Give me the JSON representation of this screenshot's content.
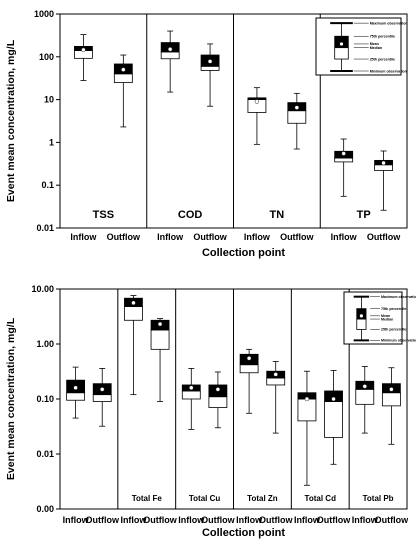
{
  "chart_data": [
    {
      "type": "boxplot",
      "ylabel": "Event mean concentration, mg/L",
      "xlabel": "Collection point",
      "yscale": "log",
      "ylim": [
        0.01,
        1000
      ],
      "ytick_labels": [
        "0.01",
        "0.1",
        "1",
        "10",
        "100",
        "1000"
      ],
      "yticks": [
        0.01,
        0.1,
        1,
        10,
        100,
        1000
      ],
      "categories": [
        "Inflow",
        "Outflow"
      ],
      "groups": [
        {
          "name": "TSS",
          "boxes": [
            {
              "category": "Inflow",
              "min": 28,
              "q1": 92,
              "median": 140,
              "mean": 145,
              "q3": 175,
              "max": 330
            },
            {
              "category": "Outflow",
              "min": 2.3,
              "q1": 25,
              "median": 40,
              "mean": 50,
              "q3": 68,
              "max": 110
            }
          ]
        },
        {
          "name": "COD",
          "boxes": [
            {
              "category": "Inflow",
              "min": 15,
              "q1": 90,
              "median": 130,
              "mean": 150,
              "q3": 215,
              "max": 400
            },
            {
              "category": "Outflow",
              "min": 7,
              "q1": 48,
              "median": 60,
              "mean": 78,
              "q3": 110,
              "max": 200
            }
          ]
        },
        {
          "name": "TN",
          "boxes": [
            {
              "category": "Inflow",
              "min": 0.9,
              "q1": 5,
              "median": 10,
              "mean": 9,
              "q3": 11,
              "max": 19
            },
            {
              "category": "Outflow",
              "min": 0.7,
              "q1": 2.8,
              "median": 5.5,
              "mean": 6.5,
              "q3": 8.5,
              "max": 14
            }
          ]
        },
        {
          "name": "TP",
          "boxes": [
            {
              "category": "Inflow",
              "min": 0.055,
              "q1": 0.35,
              "median": 0.43,
              "mean": 0.55,
              "q3": 0.62,
              "max": 1.2
            },
            {
              "category": "Outflow",
              "min": 0.026,
              "q1": 0.22,
              "median": 0.3,
              "mean": 0.33,
              "q3": 0.38,
              "max": 0.63
            }
          ]
        }
      ],
      "legend": {
        "position": "top-right",
        "entries": [
          "Maximum observation",
          "75th percentile",
          "Mean",
          "Median",
          "25th percentile",
          "Minimum observation"
        ]
      }
    },
    {
      "type": "boxplot",
      "ylabel": "Event mean concentration, mg/L",
      "xlabel": "Collection point",
      "yscale": "log",
      "ylim": [
        0.001,
        10
      ],
      "ytick_labels": [
        "0.00",
        "0.01",
        "0.10",
        "1.00",
        "10.00"
      ],
      "yticks": [
        0.001,
        0.01,
        0.1,
        1,
        10
      ],
      "categories": [
        "Inflow",
        "Outflow"
      ],
      "groups": [
        {
          "name": "",
          "boxes": [
            {
              "category": "Inflow",
              "min": 0.045,
              "q1": 0.095,
              "median": 0.13,
              "mean": 0.16,
              "q3": 0.22,
              "max": 0.38
            },
            {
              "category": "Outflow",
              "min": 0.032,
              "q1": 0.09,
              "median": 0.12,
              "mean": 0.15,
              "q3": 0.19,
              "max": 0.36
            }
          ]
        },
        {
          "name": "Total Fe",
          "boxes": [
            {
              "category": "Inflow",
              "min": 0.12,
              "q1": 2.7,
              "median": 4.8,
              "mean": 5.6,
              "q3": 6.8,
              "max": 7.6
            },
            {
              "category": "Outflow",
              "min": 0.09,
              "q1": 0.8,
              "median": 1.8,
              "mean": 2.3,
              "q3": 2.7,
              "max": 2.9
            }
          ]
        },
        {
          "name": "Total Cu",
          "boxes": [
            {
              "category": "Inflow",
              "min": 0.028,
              "q1": 0.1,
              "median": 0.14,
              "mean": 0.16,
              "q3": 0.18,
              "max": 0.36
            },
            {
              "category": "Outflow",
              "min": 0.03,
              "q1": 0.07,
              "median": 0.11,
              "mean": 0.15,
              "q3": 0.18,
              "max": 0.31
            }
          ]
        },
        {
          "name": "Total Zn",
          "boxes": [
            {
              "category": "Inflow",
              "min": 0.055,
              "q1": 0.3,
              "median": 0.42,
              "mean": 0.55,
              "q3": 0.65,
              "max": 0.8
            },
            {
              "category": "Outflow",
              "min": 0.024,
              "q1": 0.18,
              "median": 0.24,
              "mean": 0.28,
              "q3": 0.32,
              "max": 0.48
            }
          ]
        },
        {
          "name": "Total Cd",
          "boxes": [
            {
              "category": "Inflow",
              "min": 0.0027,
              "q1": 0.04,
              "median": 0.1,
              "mean": 0.1,
              "q3": 0.13,
              "max": 0.32
            },
            {
              "category": "Outflow",
              "min": 0.0065,
              "q1": 0.02,
              "median": 0.09,
              "mean": 0.1,
              "q3": 0.14,
              "max": 0.33
            }
          ]
        },
        {
          "name": "Total Pb",
          "boxes": [
            {
              "category": "Inflow",
              "min": 0.024,
              "q1": 0.08,
              "median": 0.15,
              "mean": 0.17,
              "q3": 0.21,
              "max": 0.39
            },
            {
              "category": "Outflow",
              "min": 0.015,
              "q1": 0.075,
              "median": 0.13,
              "mean": 0.15,
              "q3": 0.19,
              "max": 0.37
            }
          ]
        }
      ],
      "legend": {
        "position": "top-right",
        "entries": [
          "Maximum observation",
          "75th percentile",
          "Mean",
          "Median",
          "25th percentile",
          "Minimum observation"
        ]
      }
    }
  ]
}
